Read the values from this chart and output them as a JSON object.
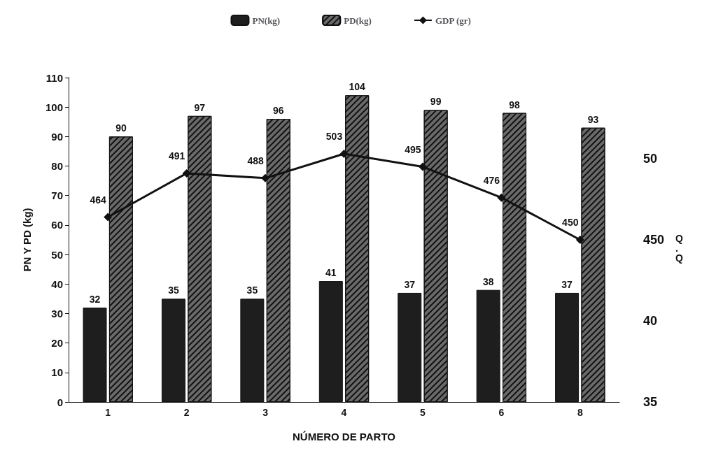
{
  "chart_data": {
    "type": "bar",
    "xlabel": "NÚMERO DE PARTO",
    "ylabel": "PN Y PD (kg)",
    "categories": [
      "1",
      "2",
      "3",
      "4",
      "5",
      "6",
      "8"
    ],
    "series": [
      {
        "name": "PN(kg)",
        "color": "#1e1e1e",
        "values": [
          32,
          35,
          35,
          41,
          37,
          38,
          37
        ]
      },
      {
        "name": "PD(kg)",
        "color": "#6a6a6a",
        "values": [
          90,
          97,
          96,
          104,
          99,
          98,
          93
        ]
      },
      {
        "name": "GDP (gr)",
        "type": "line",
        "axis": "y2",
        "color": "#111111",
        "values": [
          464,
          491,
          488,
          503,
          495,
          476,
          450
        ]
      }
    ],
    "ylim": [
      0,
      110
    ],
    "yticks": [
      0,
      10,
      20,
      30,
      40,
      50,
      60,
      70,
      80,
      90,
      100,
      110
    ],
    "y2lim": [
      350,
      550
    ],
    "annotations": [
      "35",
      "40",
      "450",
      "50",
      "Q.Q"
    ],
    "data_labels": true,
    "marker": "diamond",
    "legend": "top",
    "grid": false
  }
}
